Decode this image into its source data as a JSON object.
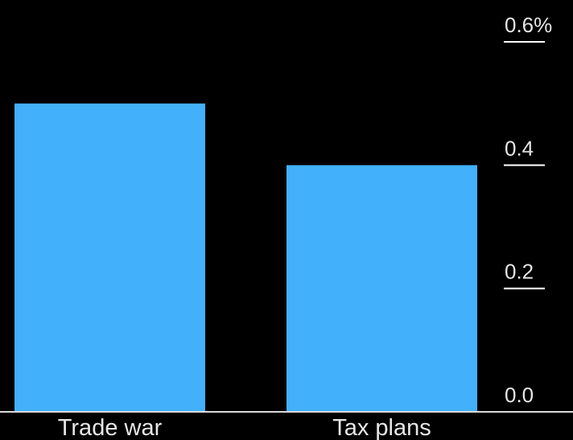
{
  "chart_data": {
    "type": "bar",
    "categories": [
      "Trade war",
      "Tax plans"
    ],
    "values": [
      0.5,
      0.4
    ],
    "ylim": [
      0,
      0.6
    ],
    "y_ticks": [
      {
        "value": 0.0,
        "label": "0.0"
      },
      {
        "value": 0.2,
        "label": "0.2"
      },
      {
        "value": 0.4,
        "label": "0.4"
      },
      {
        "value": 0.6,
        "label": "0.6%"
      }
    ],
    "y_axis_side": "right",
    "grid": false,
    "colors": {
      "bar": "#42b0fa",
      "tick_line": "#ffffff",
      "baseline": "#d9d9d9",
      "text": "#e6e6e6",
      "background": "#000000"
    }
  }
}
